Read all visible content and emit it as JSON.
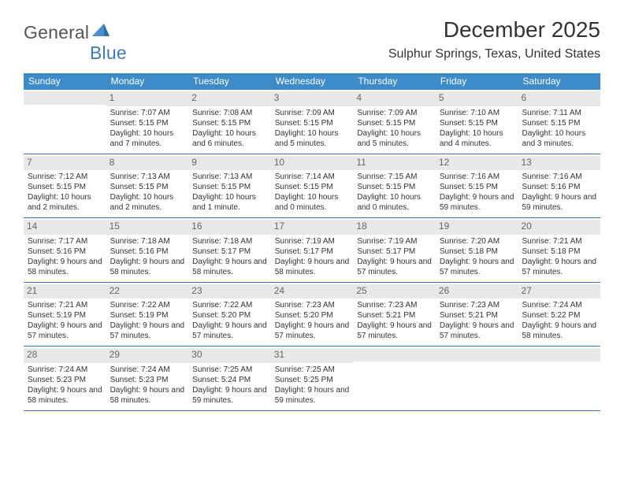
{
  "logo": {
    "text_part1": "General",
    "text_part2": "Blue"
  },
  "title": "December 2025",
  "location": "Sulphur Springs, Texas, United States",
  "weekdays": [
    "Sunday",
    "Monday",
    "Tuesday",
    "Wednesday",
    "Thursday",
    "Friday",
    "Saturday"
  ],
  "colors": {
    "header_bar": "#3d8bc8",
    "row_border": "#3d7bb8",
    "daynum_bg": "#e8e8e8",
    "text": "#333333",
    "daynum_text": "#666666"
  },
  "weeks": [
    [
      {
        "num": "",
        "sunrise": "",
        "sunset": "",
        "daylight": ""
      },
      {
        "num": "1",
        "sunrise": "Sunrise: 7:07 AM",
        "sunset": "Sunset: 5:15 PM",
        "daylight": "Daylight: 10 hours and 7 minutes."
      },
      {
        "num": "2",
        "sunrise": "Sunrise: 7:08 AM",
        "sunset": "Sunset: 5:15 PM",
        "daylight": "Daylight: 10 hours and 6 minutes."
      },
      {
        "num": "3",
        "sunrise": "Sunrise: 7:09 AM",
        "sunset": "Sunset: 5:15 PM",
        "daylight": "Daylight: 10 hours and 5 minutes."
      },
      {
        "num": "4",
        "sunrise": "Sunrise: 7:09 AM",
        "sunset": "Sunset: 5:15 PM",
        "daylight": "Daylight: 10 hours and 5 minutes."
      },
      {
        "num": "5",
        "sunrise": "Sunrise: 7:10 AM",
        "sunset": "Sunset: 5:15 PM",
        "daylight": "Daylight: 10 hours and 4 minutes."
      },
      {
        "num": "6",
        "sunrise": "Sunrise: 7:11 AM",
        "sunset": "Sunset: 5:15 PM",
        "daylight": "Daylight: 10 hours and 3 minutes."
      }
    ],
    [
      {
        "num": "7",
        "sunrise": "Sunrise: 7:12 AM",
        "sunset": "Sunset: 5:15 PM",
        "daylight": "Daylight: 10 hours and 2 minutes."
      },
      {
        "num": "8",
        "sunrise": "Sunrise: 7:13 AM",
        "sunset": "Sunset: 5:15 PM",
        "daylight": "Daylight: 10 hours and 2 minutes."
      },
      {
        "num": "9",
        "sunrise": "Sunrise: 7:13 AM",
        "sunset": "Sunset: 5:15 PM",
        "daylight": "Daylight: 10 hours and 1 minute."
      },
      {
        "num": "10",
        "sunrise": "Sunrise: 7:14 AM",
        "sunset": "Sunset: 5:15 PM",
        "daylight": "Daylight: 10 hours and 0 minutes."
      },
      {
        "num": "11",
        "sunrise": "Sunrise: 7:15 AM",
        "sunset": "Sunset: 5:15 PM",
        "daylight": "Daylight: 10 hours and 0 minutes."
      },
      {
        "num": "12",
        "sunrise": "Sunrise: 7:16 AM",
        "sunset": "Sunset: 5:15 PM",
        "daylight": "Daylight: 9 hours and 59 minutes."
      },
      {
        "num": "13",
        "sunrise": "Sunrise: 7:16 AM",
        "sunset": "Sunset: 5:16 PM",
        "daylight": "Daylight: 9 hours and 59 minutes."
      }
    ],
    [
      {
        "num": "14",
        "sunrise": "Sunrise: 7:17 AM",
        "sunset": "Sunset: 5:16 PM",
        "daylight": "Daylight: 9 hours and 58 minutes."
      },
      {
        "num": "15",
        "sunrise": "Sunrise: 7:18 AM",
        "sunset": "Sunset: 5:16 PM",
        "daylight": "Daylight: 9 hours and 58 minutes."
      },
      {
        "num": "16",
        "sunrise": "Sunrise: 7:18 AM",
        "sunset": "Sunset: 5:17 PM",
        "daylight": "Daylight: 9 hours and 58 minutes."
      },
      {
        "num": "17",
        "sunrise": "Sunrise: 7:19 AM",
        "sunset": "Sunset: 5:17 PM",
        "daylight": "Daylight: 9 hours and 58 minutes."
      },
      {
        "num": "18",
        "sunrise": "Sunrise: 7:19 AM",
        "sunset": "Sunset: 5:17 PM",
        "daylight": "Daylight: 9 hours and 57 minutes."
      },
      {
        "num": "19",
        "sunrise": "Sunrise: 7:20 AM",
        "sunset": "Sunset: 5:18 PM",
        "daylight": "Daylight: 9 hours and 57 minutes."
      },
      {
        "num": "20",
        "sunrise": "Sunrise: 7:21 AM",
        "sunset": "Sunset: 5:18 PM",
        "daylight": "Daylight: 9 hours and 57 minutes."
      }
    ],
    [
      {
        "num": "21",
        "sunrise": "Sunrise: 7:21 AM",
        "sunset": "Sunset: 5:19 PM",
        "daylight": "Daylight: 9 hours and 57 minutes."
      },
      {
        "num": "22",
        "sunrise": "Sunrise: 7:22 AM",
        "sunset": "Sunset: 5:19 PM",
        "daylight": "Daylight: 9 hours and 57 minutes."
      },
      {
        "num": "23",
        "sunrise": "Sunrise: 7:22 AM",
        "sunset": "Sunset: 5:20 PM",
        "daylight": "Daylight: 9 hours and 57 minutes."
      },
      {
        "num": "24",
        "sunrise": "Sunrise: 7:23 AM",
        "sunset": "Sunset: 5:20 PM",
        "daylight": "Daylight: 9 hours and 57 minutes."
      },
      {
        "num": "25",
        "sunrise": "Sunrise: 7:23 AM",
        "sunset": "Sunset: 5:21 PM",
        "daylight": "Daylight: 9 hours and 57 minutes."
      },
      {
        "num": "26",
        "sunrise": "Sunrise: 7:23 AM",
        "sunset": "Sunset: 5:21 PM",
        "daylight": "Daylight: 9 hours and 57 minutes."
      },
      {
        "num": "27",
        "sunrise": "Sunrise: 7:24 AM",
        "sunset": "Sunset: 5:22 PM",
        "daylight": "Daylight: 9 hours and 58 minutes."
      }
    ],
    [
      {
        "num": "28",
        "sunrise": "Sunrise: 7:24 AM",
        "sunset": "Sunset: 5:23 PM",
        "daylight": "Daylight: 9 hours and 58 minutes."
      },
      {
        "num": "29",
        "sunrise": "Sunrise: 7:24 AM",
        "sunset": "Sunset: 5:23 PM",
        "daylight": "Daylight: 9 hours and 58 minutes."
      },
      {
        "num": "30",
        "sunrise": "Sunrise: 7:25 AM",
        "sunset": "Sunset: 5:24 PM",
        "daylight": "Daylight: 9 hours and 59 minutes."
      },
      {
        "num": "31",
        "sunrise": "Sunrise: 7:25 AM",
        "sunset": "Sunset: 5:25 PM",
        "daylight": "Daylight: 9 hours and 59 minutes."
      },
      {
        "num": "",
        "sunrise": "",
        "sunset": "",
        "daylight": ""
      },
      {
        "num": "",
        "sunrise": "",
        "sunset": "",
        "daylight": ""
      },
      {
        "num": "",
        "sunrise": "",
        "sunset": "",
        "daylight": ""
      }
    ]
  ]
}
